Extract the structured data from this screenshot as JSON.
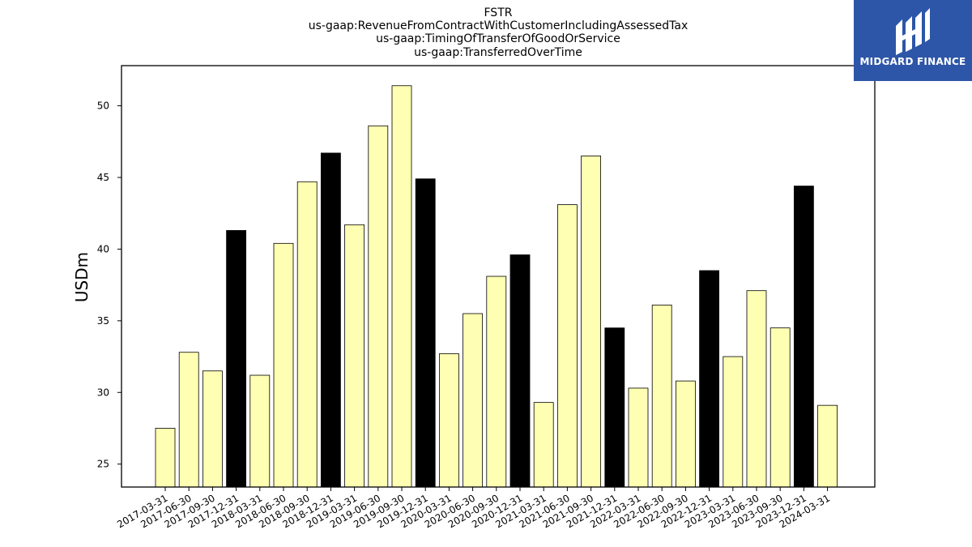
{
  "brand": {
    "name": "MIDGARD FINANCE",
    "bg_color": "#2d56a8"
  },
  "chart_data": {
    "type": "bar",
    "title_lines": [
      "FSTR",
      "us-gaap:RevenueFromContractWithCustomerIncludingAssessedTax",
      "us-gaap:TimingOfTransferOfGoodOrService",
      "us-gaap:TransferredOverTime"
    ],
    "xlabel": "",
    "ylabel": "USDm",
    "ylim": [
      23.4,
      52.8
    ],
    "yticks": [
      25,
      30,
      35,
      40,
      45,
      50
    ],
    "grid": false,
    "colors": {
      "quarter": "#ffffb3",
      "year_end": "#000000",
      "edge": "#000000"
    },
    "categories": [
      "2017-03-31",
      "2017-06-30",
      "2017-09-30",
      "2017-12-31",
      "2018-03-31",
      "2018-06-30",
      "2018-09-30",
      "2018-12-31",
      "2019-03-31",
      "2019-06-30",
      "2019-09-30",
      "2019-12-31",
      "2020-03-31",
      "2020-06-30",
      "2020-09-30",
      "2020-12-31",
      "2021-03-31",
      "2021-06-30",
      "2021-09-30",
      "2021-12-31",
      "2022-03-31",
      "2022-06-30",
      "2022-09-30",
      "2022-12-31",
      "2023-03-31",
      "2023-06-30",
      "2023-09-30",
      "2023-12-31",
      "2024-03-31"
    ],
    "values": [
      27.5,
      32.8,
      31.5,
      41.3,
      31.2,
      40.4,
      44.7,
      46.7,
      41.7,
      48.6,
      51.4,
      44.9,
      32.7,
      35.5,
      38.1,
      39.6,
      29.3,
      43.1,
      46.5,
      34.5,
      30.3,
      36.1,
      30.8,
      38.5,
      32.5,
      37.1,
      34.5,
      44.4,
      29.1
    ],
    "highlight": [
      false,
      false,
      false,
      true,
      false,
      false,
      false,
      true,
      false,
      false,
      false,
      true,
      false,
      false,
      false,
      true,
      false,
      false,
      false,
      true,
      false,
      false,
      false,
      true,
      false,
      false,
      false,
      true,
      false
    ]
  }
}
